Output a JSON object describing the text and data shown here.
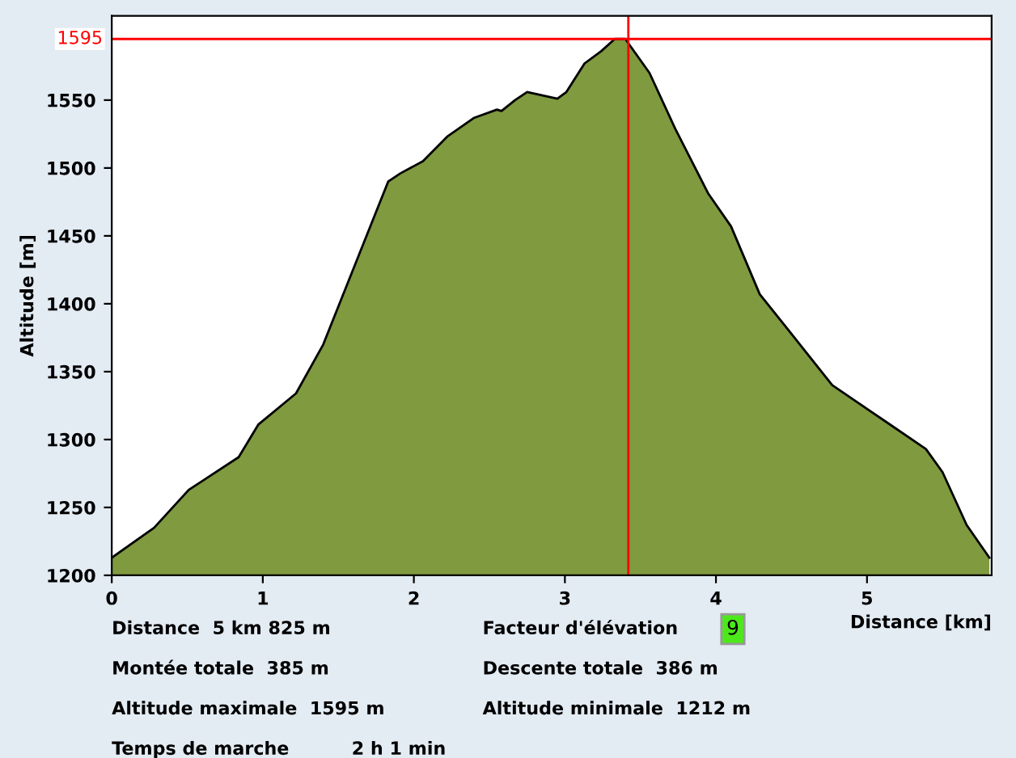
{
  "chart_data": {
    "type": "area",
    "xlabel": "Distance [km]",
    "ylabel": "Altitude [m]",
    "x": [
      0,
      0.28,
      0.51,
      0.84,
      0.97,
      1.22,
      1.4,
      1.83,
      1.91,
      2.06,
      2.22,
      2.4,
      2.55,
      2.58,
      2.67,
      2.75,
      2.95,
      3.01,
      3.13,
      3.24,
      3.33,
      3.4,
      3.56,
      3.73,
      3.95,
      4.1,
      4.29,
      4.47,
      4.77,
      5.14,
      5.39,
      5.5,
      5.66,
      5.81
    ],
    "series": [
      {
        "color": "#7f9a3f",
        "values": [
          1213,
          1235,
          1263,
          1287,
          1311,
          1334,
          1370,
          1490,
          1496,
          1505,
          1523,
          1537,
          1543,
          1542,
          1550,
          1556,
          1551,
          1556,
          1577,
          1586,
          1595,
          1595,
          1570,
          1529,
          1481,
          1457,
          1407,
          1382,
          1340,
          1312,
          1293,
          1276,
          1237,
          1213
        ]
      }
    ],
    "xlim": [
      0,
      5.825
    ],
    "ylim": [
      1200,
      1612
    ],
    "xticks": [
      0,
      1,
      2,
      3,
      4,
      5
    ],
    "yticks": [
      1200,
      1250,
      1300,
      1350,
      1400,
      1450,
      1500,
      1550
    ],
    "ref_lines": [
      {
        "axis": "y",
        "value": 1595,
        "label": "1595",
        "color": "#ff0000"
      },
      {
        "axis": "x",
        "value": 3.42,
        "color": "#ff0000"
      }
    ],
    "grid": false,
    "legend": false,
    "annotations": [
      "Distance  5 km 825 m",
      "Montée totale  385 m",
      "Altitude maximale  1595 m",
      "Temps de marche          2 h 1 min",
      "Facteur d'élévation",
      "9",
      "Descente totale  386 m",
      "Altitude minimale  1212 m"
    ]
  }
}
